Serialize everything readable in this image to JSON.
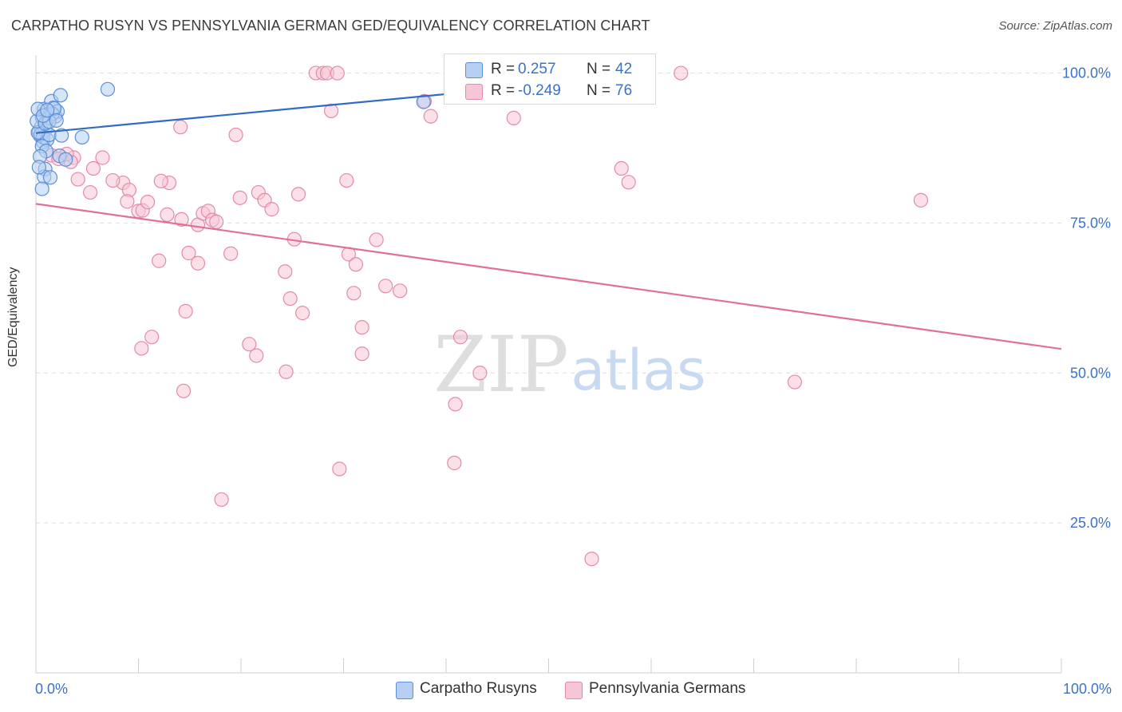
{
  "header": {
    "title": "CARPATHO RUSYN VS PENNSYLVANIA GERMAN GED/EQUIVALENCY CORRELATION CHART",
    "source": "Source: ZipAtlas.com"
  },
  "watermark": {
    "zip": "ZIP",
    "atlas": "atlas"
  },
  "legend_top": {
    "rows": [
      {
        "r_label": "R =",
        "r_value": " 0.257",
        "n_label": "N =",
        "n_value": "42"
      },
      {
        "r_label": "R =",
        "r_value": "-0.249",
        "n_label": "N =",
        "n_value": "76"
      }
    ]
  },
  "legend_bottom": {
    "items": [
      "Carpatho Rusyns",
      "Pennsylvania Germans"
    ]
  },
  "chart_data": {
    "type": "scatter",
    "title": "CARPATHO RUSYN VS PENNSYLVANIA GERMAN GED/EQUIVALENCY CORRELATION CHART",
    "xlabel": "",
    "ylabel": "GED/Equivalency",
    "xlim": [
      0,
      100
    ],
    "ylim": [
      0,
      103
    ],
    "x_tick_labels": [
      "0.0%",
      "100.0%"
    ],
    "y_ticks": [
      25,
      50,
      75,
      100
    ],
    "y_tick_labels": [
      "25.0%",
      "50.0%",
      "75.0%",
      "100.0%"
    ],
    "grid": true,
    "colors": {
      "blue": "#5b8fd6",
      "blue_fill": "#b7cff3",
      "blue_line": "#2f6cc6",
      "pink": "#e58aa8",
      "pink_fill": "#f7c6d6",
      "pink_line": "#e0709a",
      "tick_text": "#3a72c8"
    },
    "series": [
      {
        "name": "Carpatho Rusyns",
        "color": "blue",
        "trend": {
          "x1": 0,
          "y1": 90.0,
          "x2": 40,
          "y2": 96.5
        },
        "points": [
          [
            0.3,
            90.2
          ],
          [
            0.5,
            91.0
          ],
          [
            0.7,
            88.5
          ],
          [
            0.4,
            89.6
          ],
          [
            0.6,
            92.6
          ],
          [
            0.8,
            94.0
          ],
          [
            1.0,
            93.1
          ],
          [
            1.2,
            92.4
          ],
          [
            1.5,
            95.3
          ],
          [
            1.7,
            94.2
          ],
          [
            1.9,
            92.8
          ],
          [
            2.1,
            93.6
          ],
          [
            1.6,
            93.2
          ],
          [
            2.4,
            96.3
          ],
          [
            0.9,
            90.5
          ],
          [
            0.5,
            89.8
          ],
          [
            0.7,
            89.3
          ],
          [
            1.1,
            88.9
          ],
          [
            1.3,
            89.7
          ],
          [
            0.2,
            90.1
          ],
          [
            0.6,
            87.8
          ],
          [
            1.0,
            87.0
          ],
          [
            0.4,
            86.1
          ],
          [
            2.3,
            86.2
          ],
          [
            2.9,
            85.6
          ],
          [
            0.9,
            84.0
          ],
          [
            0.8,
            82.7
          ],
          [
            1.4,
            82.6
          ],
          [
            0.3,
            84.3
          ],
          [
            0.6,
            80.7
          ],
          [
            0.1,
            92.0
          ],
          [
            0.2,
            94.0
          ],
          [
            0.9,
            91.6
          ],
          [
            1.3,
            91.9
          ],
          [
            1.8,
            94.1
          ],
          [
            2.0,
            92.1
          ],
          [
            0.7,
            92.9
          ],
          [
            4.5,
            89.3
          ],
          [
            7.0,
            97.3
          ],
          [
            1.1,
            93.8
          ],
          [
            2.5,
            89.6
          ],
          [
            37.8,
            95.2
          ]
        ]
      },
      {
        "name": "Pennsylvania Germans",
        "color": "pink",
        "trend": {
          "x1": 0,
          "y1": 78.2,
          "x2": 100,
          "y2": 54.0
        },
        "points": [
          [
            27.3,
            100
          ],
          [
            28.0,
            100
          ],
          [
            28.4,
            100
          ],
          [
            29.4,
            100
          ],
          [
            62.9,
            100
          ],
          [
            28.8,
            93.7
          ],
          [
            37.9,
            95.3
          ],
          [
            38.5,
            92.8
          ],
          [
            46.6,
            92.5
          ],
          [
            14.1,
            91.0
          ],
          [
            19.5,
            89.7
          ],
          [
            3.7,
            85.9
          ],
          [
            5.6,
            84.1
          ],
          [
            6.5,
            85.9
          ],
          [
            8.5,
            81.7
          ],
          [
            3.4,
            85.2
          ],
          [
            4.1,
            82.3
          ],
          [
            5.3,
            80.1
          ],
          [
            7.5,
            82.1
          ],
          [
            9.1,
            80.5
          ],
          [
            10.0,
            77.0
          ],
          [
            10.4,
            77.1
          ],
          [
            12.8,
            76.4
          ],
          [
            13.0,
            81.7
          ],
          [
            14.2,
            75.6
          ],
          [
            15.8,
            74.7
          ],
          [
            16.3,
            76.6
          ],
          [
            16.8,
            77.0
          ],
          [
            17.2,
            75.5
          ],
          [
            17.6,
            75.2
          ],
          [
            19.9,
            79.2
          ],
          [
            21.7,
            80.1
          ],
          [
            22.3,
            78.8
          ],
          [
            23.0,
            77.3
          ],
          [
            24.3,
            66.9
          ],
          [
            25.2,
            72.3
          ],
          [
            25.6,
            79.8
          ],
          [
            30.3,
            82.1
          ],
          [
            30.5,
            69.8
          ],
          [
            31.2,
            68.1
          ],
          [
            33.2,
            72.2
          ],
          [
            34.1,
            64.5
          ],
          [
            35.5,
            63.7
          ],
          [
            31.0,
            63.3
          ],
          [
            31.8,
            57.6
          ],
          [
            24.8,
            62.4
          ],
          [
            26.0,
            60.0
          ],
          [
            14.6,
            60.3
          ],
          [
            12.0,
            68.7
          ],
          [
            10.3,
            54.1
          ],
          [
            11.3,
            56.0
          ],
          [
            14.9,
            70.0
          ],
          [
            15.8,
            68.3
          ],
          [
            19.0,
            69.9
          ],
          [
            20.8,
            54.8
          ],
          [
            21.5,
            52.9
          ],
          [
            24.4,
            50.2
          ],
          [
            31.8,
            53.2
          ],
          [
            41.4,
            56.0
          ],
          [
            40.9,
            44.8
          ],
          [
            43.3,
            50.0
          ],
          [
            40.8,
            35.0
          ],
          [
            29.6,
            34.0
          ],
          [
            18.1,
            28.9
          ],
          [
            54.2,
            19.0
          ],
          [
            14.4,
            47.0
          ],
          [
            74.0,
            48.5
          ],
          [
            57.1,
            84.1
          ],
          [
            57.8,
            81.8
          ],
          [
            86.3,
            78.8
          ],
          [
            1.5,
            86.3
          ],
          [
            2.2,
            85.7
          ],
          [
            10.9,
            78.5
          ],
          [
            12.2,
            82.0
          ],
          [
            8.9,
            78.6
          ],
          [
            3.0,
            86.5
          ]
        ]
      }
    ]
  }
}
